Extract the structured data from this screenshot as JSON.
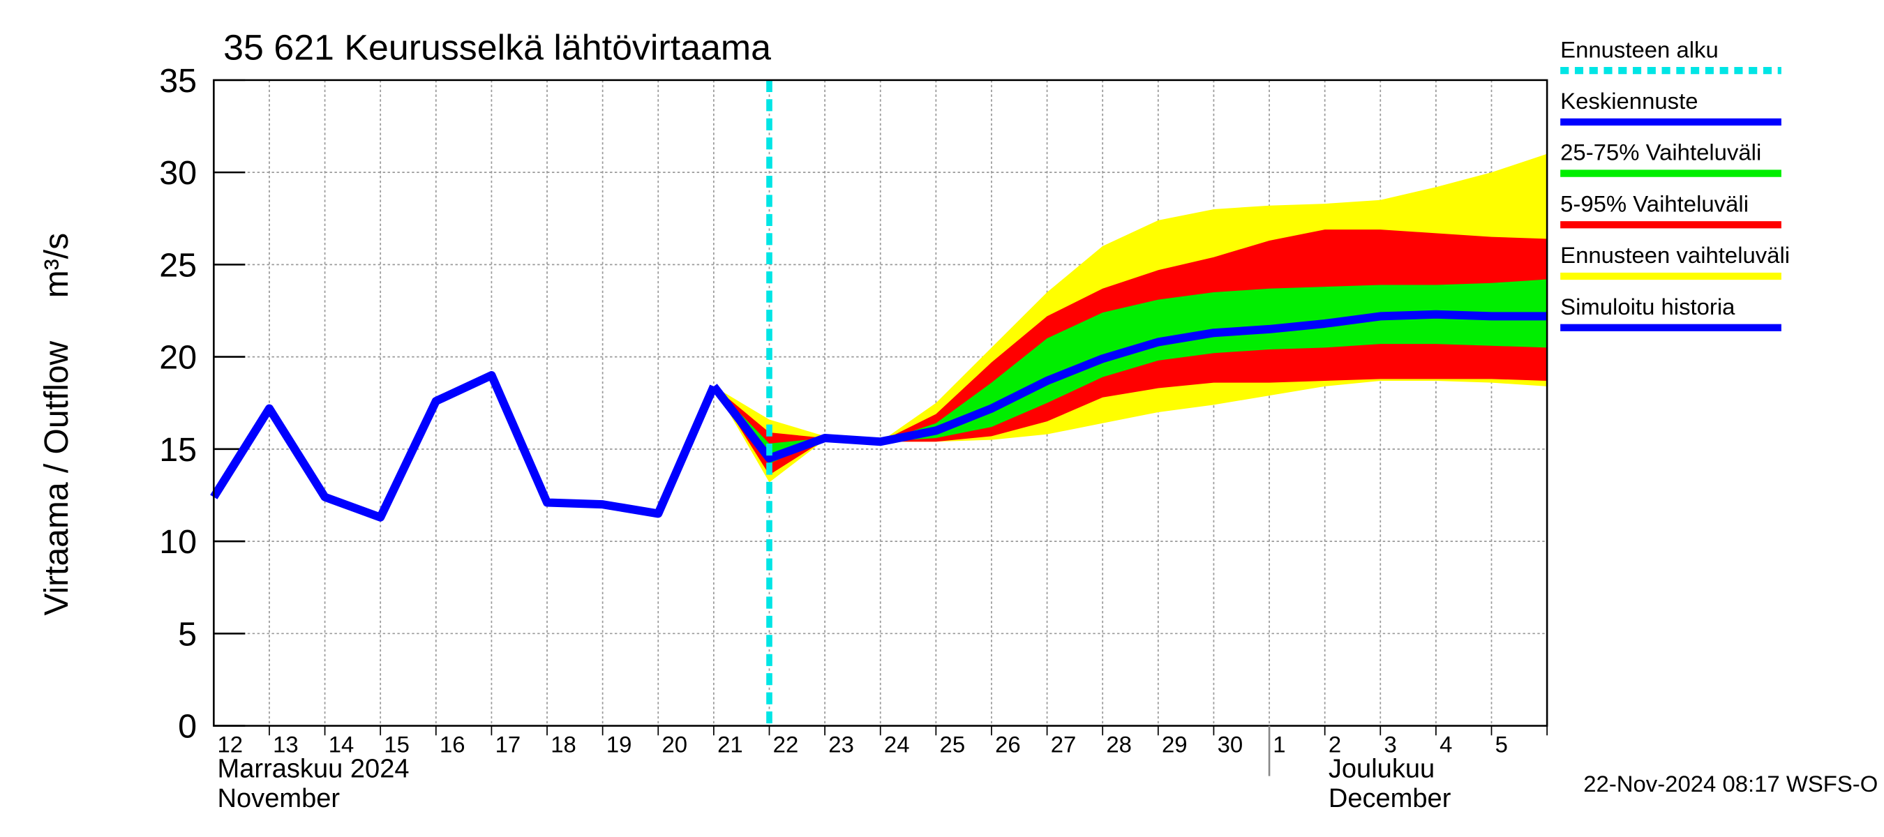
{
  "chart_data": {
    "type": "line",
    "title": "35 621 Keurusselkä lähtövirtaama",
    "y_label": "Virtaama / Outflow",
    "y_unit": "m³/s",
    "categories": [
      "12",
      "13",
      "14",
      "15",
      "16",
      "17",
      "18",
      "19",
      "20",
      "21",
      "22",
      "23",
      "24",
      "25",
      "26",
      "27",
      "28",
      "29",
      "30",
      "1",
      "2",
      "3",
      "4",
      "5",
      null
    ],
    "ylim": [
      0,
      35
    ],
    "yticks": [
      0,
      5,
      10,
      15,
      20,
      25,
      30,
      35
    ],
    "grid": true,
    "forecast_start": {
      "name": "Ennusteen alku",
      "color": "#00e5e5",
      "at": "22"
    },
    "series": [
      {
        "name": "Keskiennuste",
        "kind": "line",
        "color": "#0000ff",
        "values": [
          null,
          null,
          null,
          null,
          null,
          null,
          null,
          null,
          null,
          18.4,
          14.5,
          15.6,
          15.4,
          16.0,
          17.2,
          18.7,
          19.9,
          20.8,
          21.3,
          21.5,
          21.8,
          22.2,
          22.3,
          22.2,
          22.2
        ]
      },
      {
        "name": "25-75% Vaihteluväli",
        "kind": "band",
        "color": "#00ee00",
        "low": [
          null,
          null,
          null,
          null,
          null,
          null,
          null,
          null,
          null,
          18.4,
          14.2,
          15.6,
          15.4,
          15.6,
          16.2,
          17.5,
          18.9,
          19.8,
          20.2,
          20.4,
          20.5,
          20.7,
          20.7,
          20.6,
          20.5
        ],
        "high": [
          null,
          null,
          null,
          null,
          null,
          null,
          null,
          null,
          null,
          18.4,
          15.3,
          15.6,
          15.4,
          16.4,
          18.6,
          21.0,
          22.4,
          23.1,
          23.5,
          23.7,
          23.8,
          23.9,
          23.9,
          24.0,
          24.2
        ]
      },
      {
        "name": "5-95% Vaihteluväli",
        "kind": "band",
        "color": "#ff0000",
        "low": [
          null,
          null,
          null,
          null,
          null,
          null,
          null,
          null,
          null,
          18.4,
          13.6,
          15.5,
          15.4,
          15.4,
          15.7,
          16.5,
          17.8,
          18.3,
          18.6,
          18.6,
          18.7,
          18.8,
          18.8,
          18.8,
          18.7
        ],
        "high": [
          null,
          null,
          null,
          null,
          null,
          null,
          null,
          null,
          null,
          18.4,
          15.9,
          15.6,
          15.4,
          16.9,
          19.7,
          22.2,
          23.7,
          24.7,
          25.4,
          26.3,
          26.9,
          26.9,
          26.7,
          26.5,
          26.4
        ]
      },
      {
        "name": "Ennusteen vaihteluväli",
        "kind": "band",
        "color": "#ffff00",
        "low": [
          null,
          null,
          null,
          null,
          null,
          null,
          null,
          null,
          null,
          18.4,
          13.2,
          15.5,
          15.4,
          15.4,
          15.5,
          15.8,
          16.4,
          17.0,
          17.4,
          17.9,
          18.4,
          18.7,
          18.7,
          18.6,
          18.4
        ],
        "high": [
          null,
          null,
          null,
          null,
          null,
          null,
          null,
          null,
          null,
          18.4,
          16.6,
          15.7,
          15.4,
          17.5,
          20.5,
          23.5,
          26.0,
          27.4,
          28.0,
          28.2,
          28.3,
          28.5,
          29.2,
          30.0,
          31.0
        ]
      },
      {
        "name": "Simuloitu historia",
        "kind": "line",
        "color": "#0000ff",
        "values": [
          12.4,
          17.2,
          12.4,
          11.3,
          17.6,
          19.0,
          12.1,
          12.0,
          11.5,
          18.4,
          null,
          null,
          null,
          null,
          null,
          null,
          null,
          null,
          null,
          null,
          null,
          null,
          null,
          null,
          null
        ]
      }
    ],
    "month_labels": [
      {
        "lines": [
          "Marraskuu 2024",
          "November"
        ]
      },
      {
        "lines": [
          "Joulukuu",
          "December"
        ]
      }
    ],
    "timestamp": "22-Nov-2024 08:17 WSFS-O"
  }
}
